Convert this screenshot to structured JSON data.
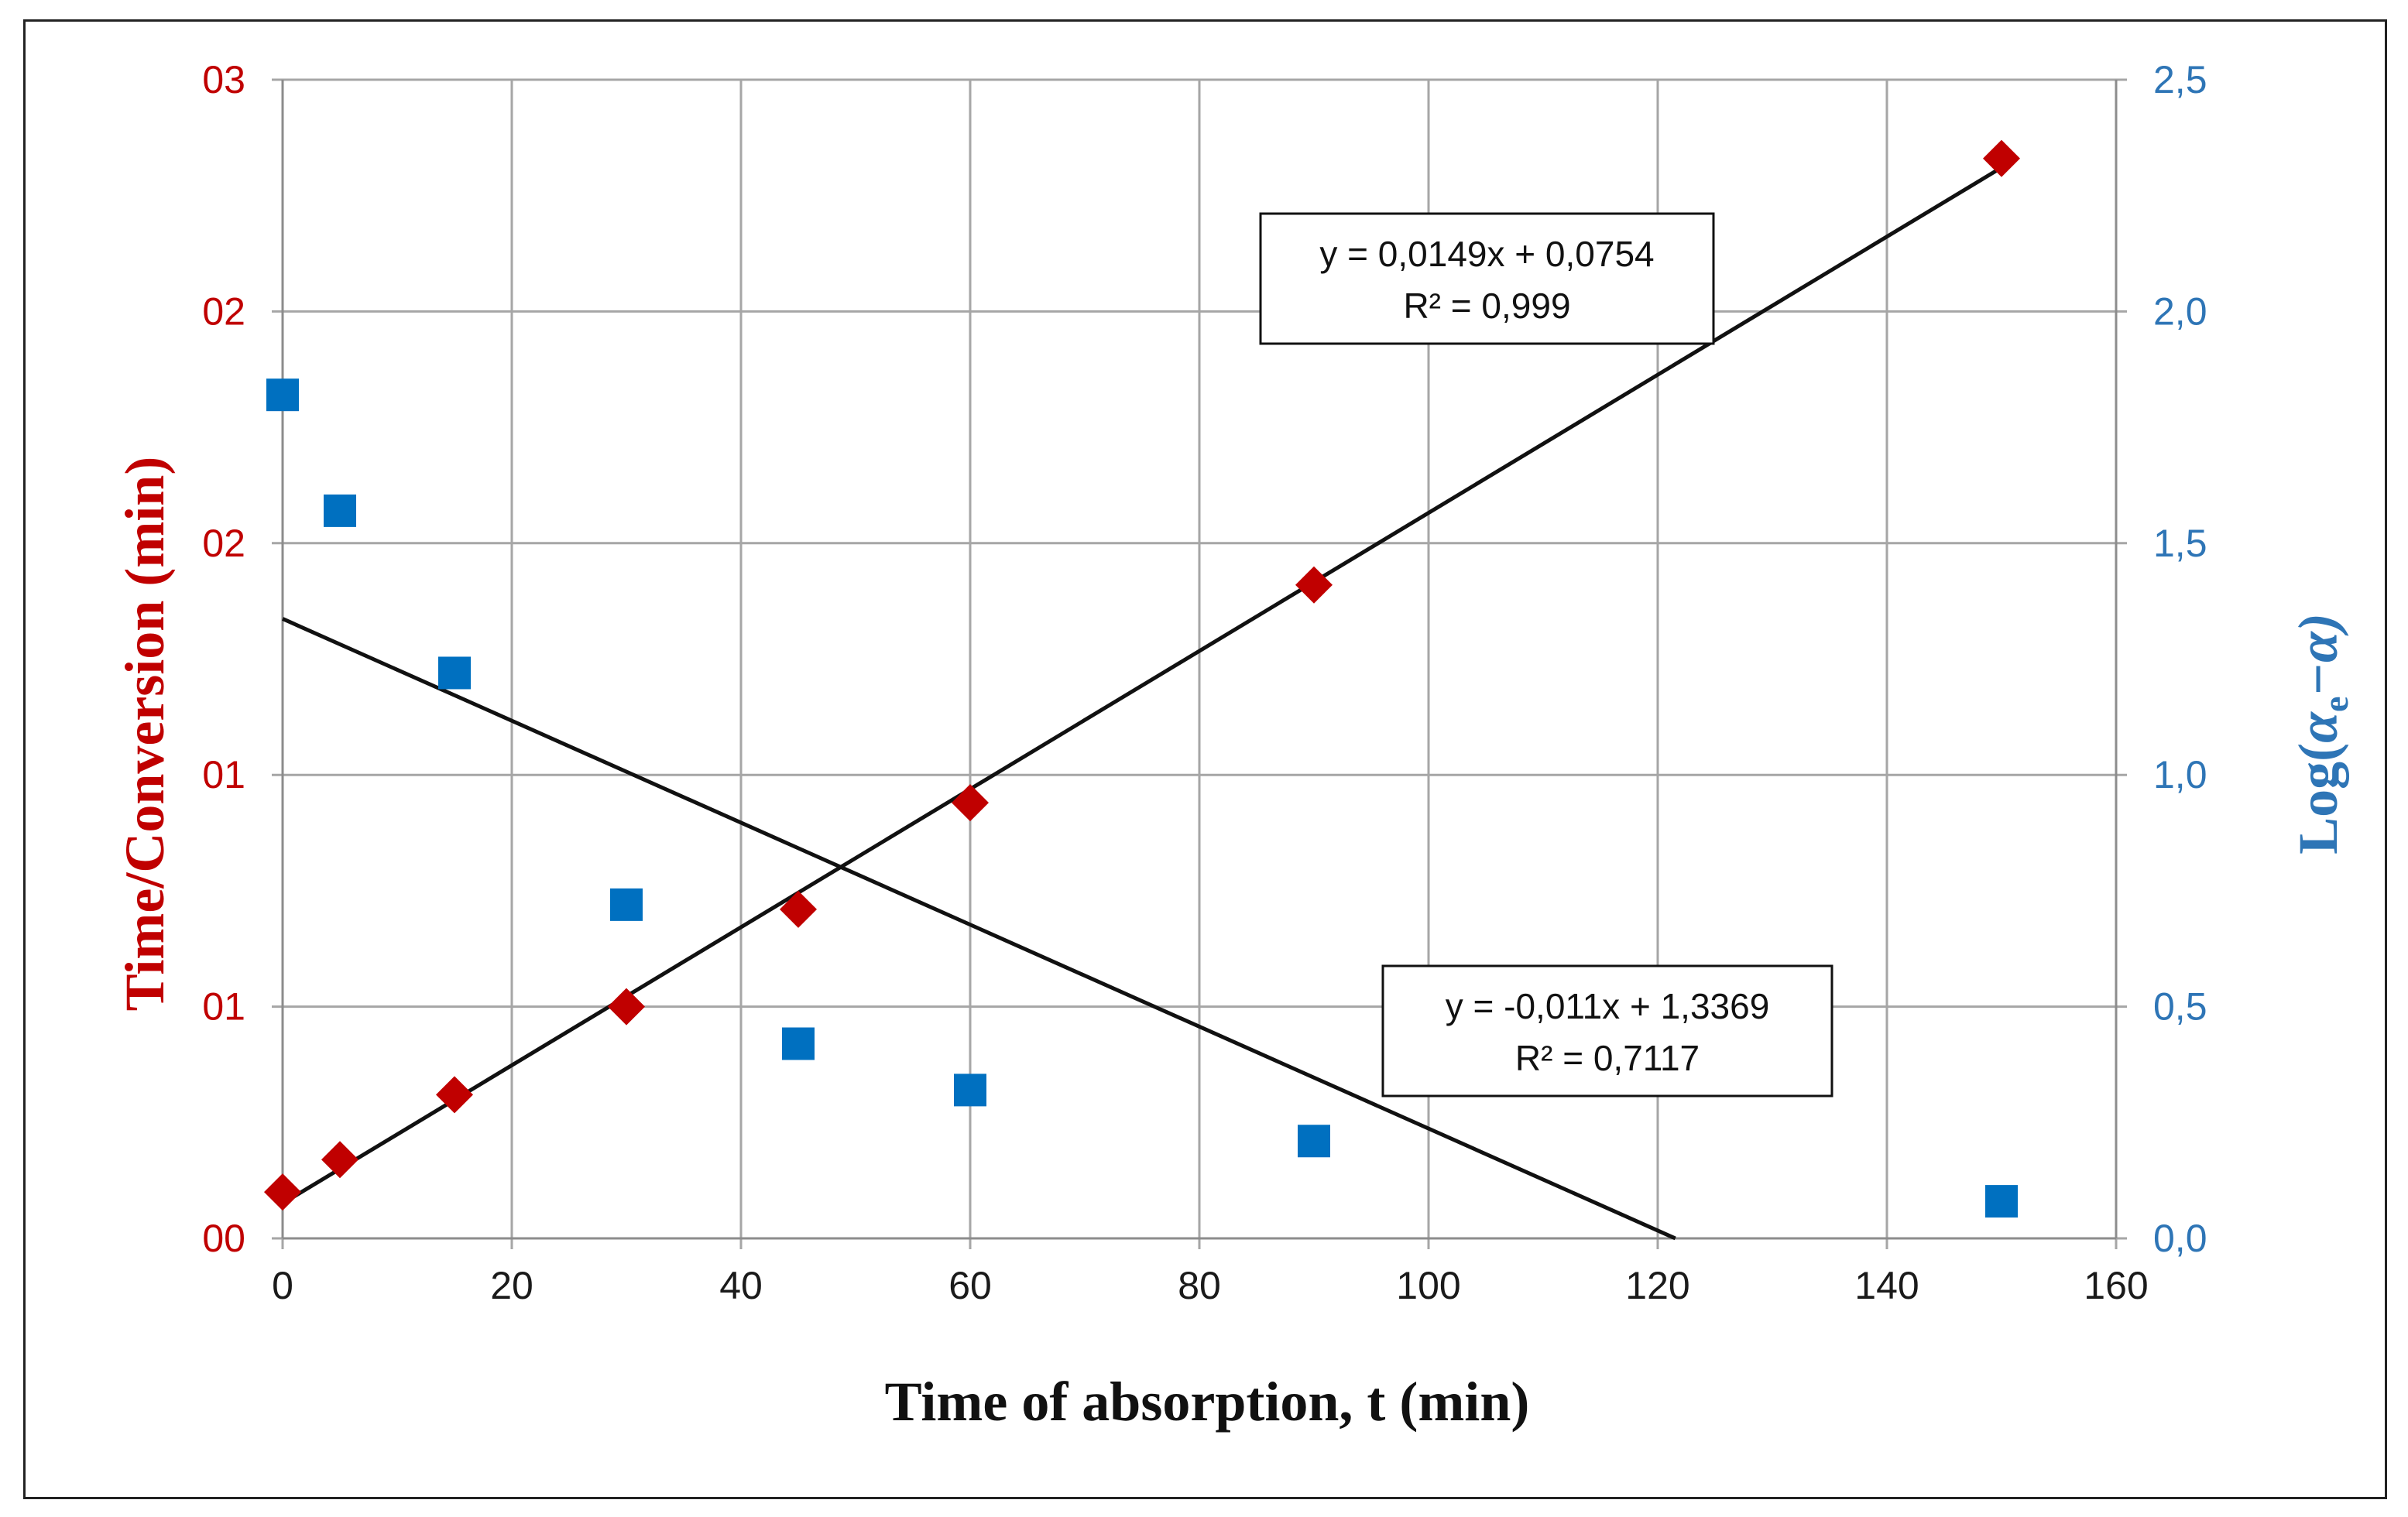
{
  "chart_data": {
    "type": "scatter",
    "xlabel": "Time of absorption, t (min)",
    "ylabel_left": "Time/Conversion (min)",
    "ylabel_right": "Log(",
    "ylabel_right_a": "α",
    "ylabel_right_sub": "e",
    "ylabel_right_tail": "−α)",
    "xlim": [
      0,
      160
    ],
    "ylim_left": [
      0,
      2.5
    ],
    "ylim_right": [
      0,
      2.5
    ],
    "x_ticks": [
      "0",
      "20",
      "40",
      "60",
      "80",
      "100",
      "120",
      "140",
      "160"
    ],
    "y_ticks_left": [
      "00",
      "01",
      "01",
      "02",
      "02",
      "03"
    ],
    "y_ticks_right": [
      "0,0",
      "0,5",
      "1,0",
      "1,5",
      "2,0",
      "2,5"
    ],
    "grid": true,
    "series": [
      {
        "name": "Time/Conversion",
        "axis": "left",
        "marker": "diamond",
        "color": "#c00000",
        "x": [
          0,
          5,
          15,
          30,
          45,
          60,
          90,
          150
        ],
        "y": [
          0.1,
          0.17,
          0.31,
          0.5,
          0.71,
          0.94,
          1.41,
          2.33
        ],
        "trendline": {
          "slope": 0.0149,
          "intercept": 0.0754,
          "equation": "y = 0,0149x + 0,0754",
          "r2": "R² = 0,999",
          "color": "#111111"
        }
      },
      {
        "name": "Log(αe−α)",
        "axis": "right",
        "marker": "square",
        "color": "#0070c0",
        "x": [
          0,
          5,
          15,
          30,
          45,
          60,
          90,
          150
        ],
        "y": [
          1.82,
          1.57,
          1.22,
          0.72,
          0.42,
          0.32,
          0.21,
          0.08
        ],
        "trendline": {
          "slope": -0.011,
          "intercept": 1.3369,
          "equation": "y = -0,011x + 1,3369",
          "r2": "R² = 0,7117",
          "color": "#111111"
        }
      }
    ]
  }
}
